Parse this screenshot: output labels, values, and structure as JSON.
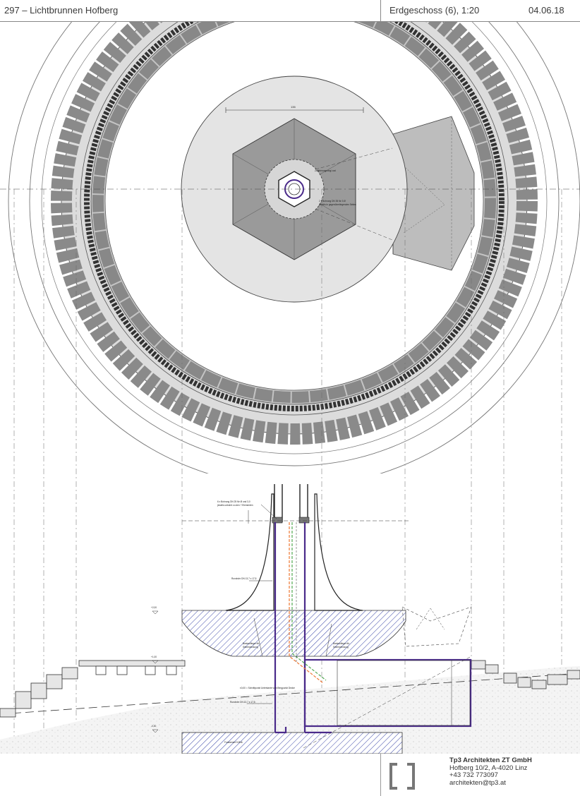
{
  "header": {
    "project": "297 – Lichtbrunnen Hofberg",
    "plan": "Erdgeschoss (6), 1:20",
    "date": "04.06.18"
  },
  "footer": {
    "company": "Tp3 Architekten ZT GmbH",
    "address": "Hofberg 10/2, A-4020 Linz",
    "phone": "+43 732 773097",
    "email": "architekten@tp3.at"
  },
  "plan_view": {
    "dimension": "135",
    "labels": [
      "Zentrierungsring/-rad",
      "2 x Bohrung DN 35 für 3 Ø",
      "jeweils in gegenüberliegenden Seiten"
    ]
  },
  "section_view": {
    "label_top": "6 x Bohrung DN 25 für Ø und 3,0",
    "label_top2": "jeweils unbohrt zu den ? Elementen",
    "label_rohr_upper": "Rundrohr DN 13,7 x 17,5",
    "label_rohr_lower": "Rundrohr DN 13,7 x 17,5",
    "label_bank_left": "Bankaufleger für",
    "label_bank_left2": "Sitzeindeckung",
    "label_bank_right": "Bankaufleger für",
    "label_bank_right2": "Sitzeindeckung",
    "label_schnitt": "±0,00 = Schnittpunkt Unterkante vom Bergpunkt Decke",
    "label_fundament": "Fundament 5 Ø4b",
    "level_1": "+2,00",
    "level_2": "+1,00",
    "level_3": "-0,40"
  },
  "colors": {
    "purple": "#4a2a8a",
    "orange": "#ee7733",
    "green": "#55aa55",
    "hatch": "#3b47a8"
  }
}
